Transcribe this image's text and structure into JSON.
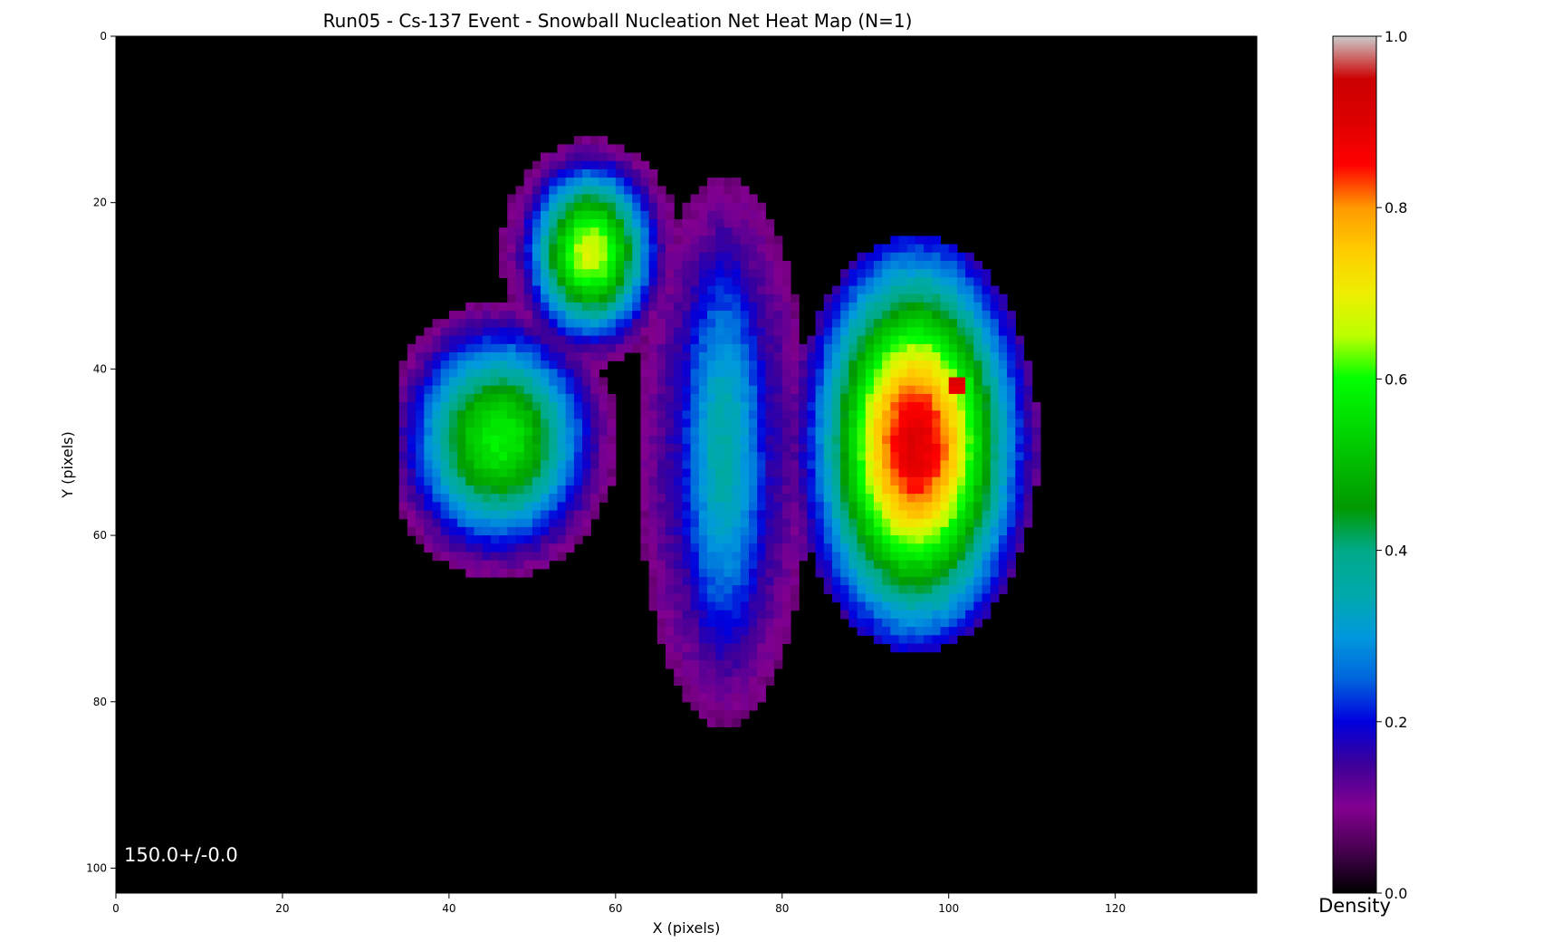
{
  "chart_data": {
    "type": "heatmap",
    "title": "Run05 - Cs-137 Event - Snowball Nucleation Net Heat Map (N=1)",
    "xlabel": "X (pixels)",
    "ylabel": "Y (pixels)",
    "xlim": [
      0,
      137
    ],
    "ylim": [
      103,
      0
    ],
    "x_ticks": [
      0,
      20,
      40,
      60,
      80,
      100,
      120
    ],
    "y_ticks": [
      0,
      20,
      40,
      60,
      80,
      100
    ],
    "annotation": "150.0+/-0.0",
    "background_color": "#000000",
    "colormap": "nipy_spectral",
    "colorbar": {
      "label": "Density",
      "range": [
        0.0,
        1.0
      ],
      "ticks": [
        "0.0",
        "0.2",
        "0.4",
        "0.6",
        "0.8",
        "1.0"
      ]
    },
    "blobs": [
      {
        "name": "lower-left lobe",
        "cx": 46,
        "cy": 48.5,
        "rx": 9.5,
        "ry": 11.5,
        "peak": 0.58
      },
      {
        "name": "upper-left lobe",
        "cx": 57,
        "cy": 26,
        "rx": 6.5,
        "ry": 9,
        "peak": 0.68
      },
      {
        "name": "central ridge",
        "cx": 73,
        "cy": 50,
        "rx": 6,
        "ry": 26,
        "peak": 0.36
      },
      {
        "name": "right lobe",
        "cx": 96,
        "cy": 49,
        "rx": 10,
        "ry": 19,
        "peak": 0.9
      },
      {
        "name": "right peak",
        "cx": 101,
        "cy": 42,
        "rx": 2,
        "ry": 2,
        "peak": 1.0
      }
    ]
  }
}
